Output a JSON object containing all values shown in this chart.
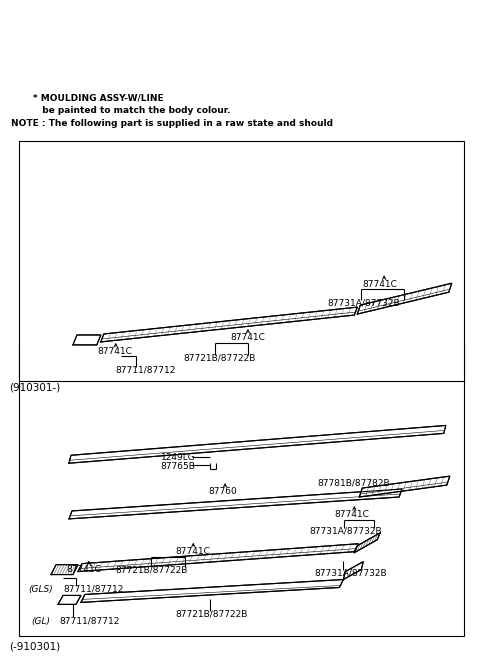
{
  "bg_color": "#ffffff",
  "line_color": "#000000",
  "text_color": "#000000",
  "fig_width": 4.8,
  "fig_height": 6.57,
  "title_top": "(-910301)",
  "title_bottom": "(910301-)",
  "note_line1": "NOTE : The following part is supplied in a raw state and should",
  "note_line2": "          be painted to match the body colour.",
  "note_line3": "       * MOULDING ASSY-W/LINE"
}
